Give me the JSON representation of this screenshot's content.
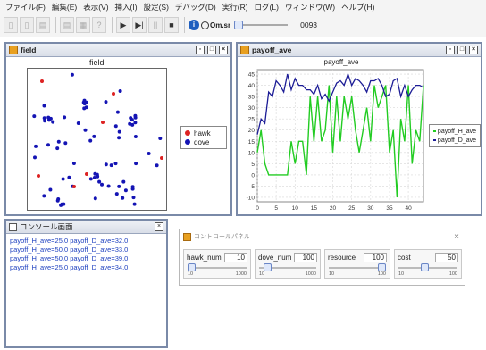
{
  "menu": [
    "ファイル(F)",
    "編集(E)",
    "表示(V)",
    "挿入(I)",
    "設定(S)",
    "デバッグ(D)",
    "実行(R)",
    "ログ(L)",
    "ウィンドウ(W)",
    "ヘルプ(H)"
  ],
  "toolbar": {
    "buttons": [
      "▯",
      "▯",
      "▤",
      "▤",
      "▦",
      "?",
      "▶",
      "▶|",
      "||",
      "■"
    ],
    "speed_label": "Om.sr",
    "counter": "0093"
  },
  "field_window": {
    "title": "field",
    "plot_title": "field",
    "legend": [
      {
        "label": "hawk",
        "color": "#dd2222"
      },
      {
        "label": "dove",
        "color": "#1414b4"
      }
    ]
  },
  "payoff_window": {
    "title": "payoff_ave",
    "chart_data": {
      "type": "line",
      "title": "payoff_ave",
      "x_ticks": [
        "0",
        "5",
        "10",
        "15",
        "20",
        "25",
        "30",
        "35",
        "40"
      ],
      "y_ticks": [
        "-10",
        "-5",
        "0",
        "5",
        "10",
        "15",
        "20",
        "25",
        "30",
        "35",
        "40",
        "45"
      ],
      "xlim": [
        0,
        44
      ],
      "ylim": [
        -12,
        47
      ],
      "series": [
        {
          "name": "payoff_H_ave",
          "color": "#22cc22",
          "x": [
            0,
            1,
            2,
            3,
            4,
            5,
            6,
            7,
            8,
            9,
            10,
            11,
            12,
            13,
            14,
            15,
            16,
            17,
            18,
            19,
            20,
            21,
            22,
            23,
            24,
            25,
            26,
            27,
            28,
            29,
            30,
            31,
            32,
            33,
            34,
            35,
            36,
            37,
            38,
            39,
            40,
            41,
            42,
            43,
            44
          ],
          "y": [
            10,
            20,
            5,
            0,
            0,
            0,
            0,
            0,
            0,
            15,
            5,
            15,
            15,
            0,
            35,
            15,
            35,
            15,
            20,
            40,
            10,
            35,
            15,
            35,
            25,
            35,
            20,
            10,
            20,
            30,
            15,
            40,
            30,
            35,
            40,
            10,
            20,
            -10,
            25,
            15,
            40,
            5,
            20,
            15,
            40
          ]
        },
        {
          "name": "payoff_D_ave",
          "color": "#1c1c96",
          "x": [
            0,
            1,
            2,
            3,
            4,
            5,
            6,
            7,
            8,
            9,
            10,
            11,
            12,
            13,
            14,
            15,
            16,
            17,
            18,
            19,
            20,
            21,
            22,
            23,
            24,
            25,
            26,
            27,
            28,
            29,
            30,
            31,
            32,
            33,
            34,
            35,
            36,
            37,
            38,
            39,
            40,
            41,
            42,
            43,
            44
          ],
          "y": [
            18,
            25,
            23,
            37,
            35,
            42,
            40,
            37,
            45,
            38,
            43,
            40,
            40,
            38,
            38,
            36,
            40,
            34,
            36,
            33,
            37,
            41,
            42,
            40,
            45,
            40,
            43,
            42,
            40,
            37,
            42,
            42,
            43,
            40,
            35,
            36,
            42,
            43,
            35,
            40,
            35,
            38,
            40,
            40,
            39
          ]
        }
      ]
    }
  },
  "console_window": {
    "title": "コンソール画面",
    "lines": [
      "payoff_H_ave=25.0 payoff_D_ave=32.0",
      "payoff_H_ave=50.0 payoff_D_ave=33.0",
      "payoff_H_ave=50.0 payoff_D_ave=39.0",
      "payoff_H_ave=25.0 payoff_D_ave=34.0"
    ]
  },
  "control_panel": {
    "title": "コントロールパネル",
    "sliders": [
      {
        "label": "hawk_num",
        "value": "10",
        "min": "10",
        "max": "1000",
        "fraction": 0.0
      },
      {
        "label": "dove_num",
        "value": "100",
        "min": "10",
        "max": "1000",
        "fraction": 0.09
      },
      {
        "label": "resource",
        "value": "100",
        "min": "10",
        "max": "100",
        "fraction": 1.0
      },
      {
        "label": "cost",
        "value": "50",
        "min": "10",
        "max": "100",
        "fraction": 0.44
      }
    ]
  }
}
